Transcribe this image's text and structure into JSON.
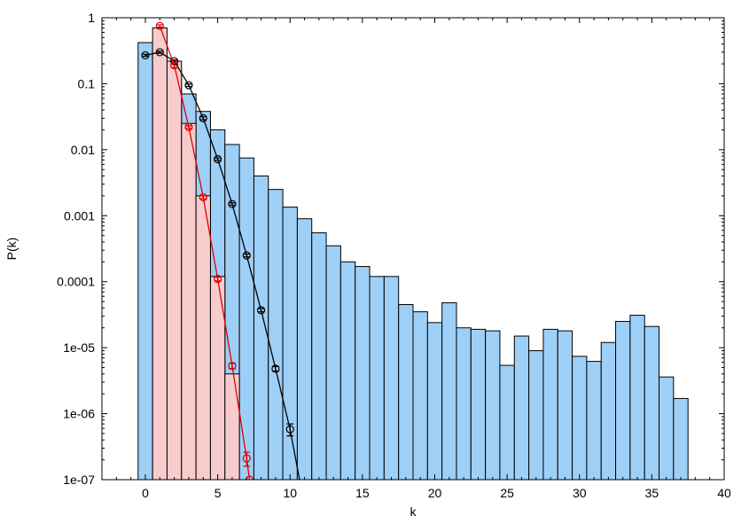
{
  "chart_data": {
    "type": "bar",
    "title": "",
    "xlabel": "k",
    "ylabel": "P(k)",
    "xlim": [
      -3,
      40
    ],
    "ylim": [
      1e-07,
      1
    ],
    "yscale": "log",
    "grid": false,
    "legend": "none",
    "xticks": [
      0,
      5,
      10,
      15,
      20,
      25,
      30,
      35,
      40
    ],
    "xtick_labels": [
      "0",
      "5",
      "10",
      "15",
      "20",
      "25",
      "30",
      "35",
      "40"
    ],
    "yticks": [
      1e-07,
      1e-06,
      1e-05,
      0.0001,
      0.001,
      0.01,
      0.1,
      1
    ],
    "ytick_labels": [
      "1e-07",
      "1e-06",
      "1e-05",
      "0.0001",
      "0.001",
      "0.01",
      "0.1",
      "1"
    ],
    "series": [
      {
        "kind": "bar",
        "color": "#9ecff7",
        "k": [
          0,
          1,
          2,
          3,
          4,
          5,
          6,
          7,
          8,
          9,
          10,
          11,
          12,
          13,
          14,
          15,
          16,
          17,
          18,
          19,
          20,
          21,
          22,
          23,
          24,
          25,
          26,
          27,
          28,
          29,
          30,
          31,
          32,
          33,
          34,
          35,
          36,
          37
        ],
        "values": [
          0.42,
          0.3,
          0.13,
          0.07,
          0.038,
          0.02,
          0.012,
          0.0075,
          0.004,
          0.0025,
          0.00135,
          0.0009,
          0.00055,
          0.00035,
          0.0002,
          0.00017,
          0.00012,
          0.00012,
          4.5e-05,
          3.5e-05,
          2.4e-05,
          4.8e-05,
          2e-05,
          1.9e-05,
          1.8e-05,
          5.4e-06,
          1.5e-05,
          9e-06,
          1.9e-05,
          1.8e-05,
          7.4e-06,
          6.2e-06,
          1.2e-05,
          2.5e-05,
          3.1e-05,
          2.1e-05,
          3.6e-06,
          1.7e-06
        ]
      },
      {
        "kind": "bar",
        "color": "#f8cccc",
        "k": [
          1,
          2,
          3,
          4,
          5,
          6
        ],
        "values": [
          0.7,
          0.22,
          0.025,
          0.002,
          0.00012,
          4e-06
        ]
      },
      {
        "kind": "line-markers",
        "color": "#000000",
        "k": [
          0,
          1,
          2,
          3,
          4,
          5,
          6,
          7,
          8,
          9,
          10,
          11
        ],
        "values": [
          0.27,
          0.3,
          0.22,
          0.095,
          0.03,
          0.0072,
          0.0015,
          0.00025,
          3.7e-05,
          4.8e-06,
          5.8e-07,
          4e-08
        ],
        "errors": [
          0.01,
          0.012,
          0.01,
          0.004,
          0.0015,
          0.0003,
          6e-05,
          1.2e-05,
          2e-06,
          4e-07,
          1.2e-07,
          0
        ]
      },
      {
        "kind": "line-markers",
        "color": "#dd0000",
        "k": [
          1,
          2,
          3,
          4,
          5,
          6,
          7,
          7.2
        ],
        "values": [
          0.75,
          0.19,
          0.022,
          0.0019,
          0.00011,
          5.3e-06,
          2.1e-07,
          1e-07
        ],
        "errors": [
          0.03,
          0.015,
          0.001,
          0.0001,
          7e-06,
          5e-07,
          5e-08,
          0
        ]
      }
    ]
  }
}
